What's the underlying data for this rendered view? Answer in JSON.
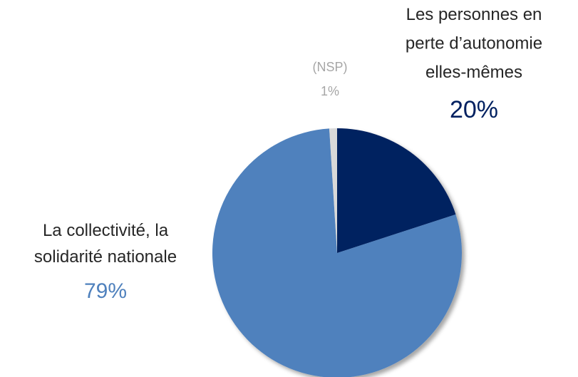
{
  "chart_data": {
    "type": "pie",
    "categories": [
      "Les personnes en\nperte d’autonomie\nelles-mêmes",
      "La collectivité, la\nsolidarité nationale",
      "(NSP)"
    ],
    "values": [
      20,
      79,
      1
    ],
    "value_labels": [
      "20%",
      "79%",
      "1%"
    ],
    "colors": [
      "#002060",
      "#4f81bd",
      "#d9d9d9"
    ],
    "label_colors": [
      "#262626",
      "#262626",
      "#a6a6a6"
    ],
    "value_label_colors": [
      "#002060",
      "#4f81bd",
      "#a6a6a6"
    ]
  }
}
